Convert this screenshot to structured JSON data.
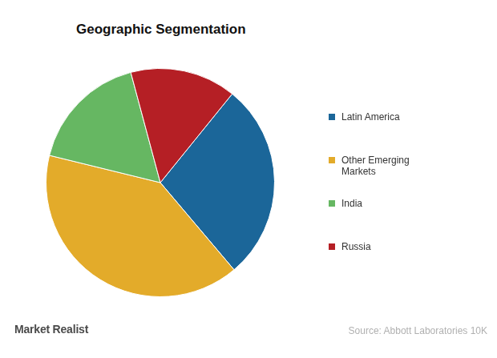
{
  "chart_data": {
    "type": "pie",
    "title": "Geographic Segmentation",
    "categories": [
      "Latin America",
      "Other Emerging Markets",
      "India",
      "Russia"
    ],
    "values": [
      28,
      40,
      17,
      15
    ],
    "colors": [
      "#1b6699",
      "#e3ab2a",
      "#66b762",
      "#b51f25"
    ],
    "legend": "right",
    "source": "Source: Abbott Laboratories 10K",
    "logo": "Market Realist"
  }
}
